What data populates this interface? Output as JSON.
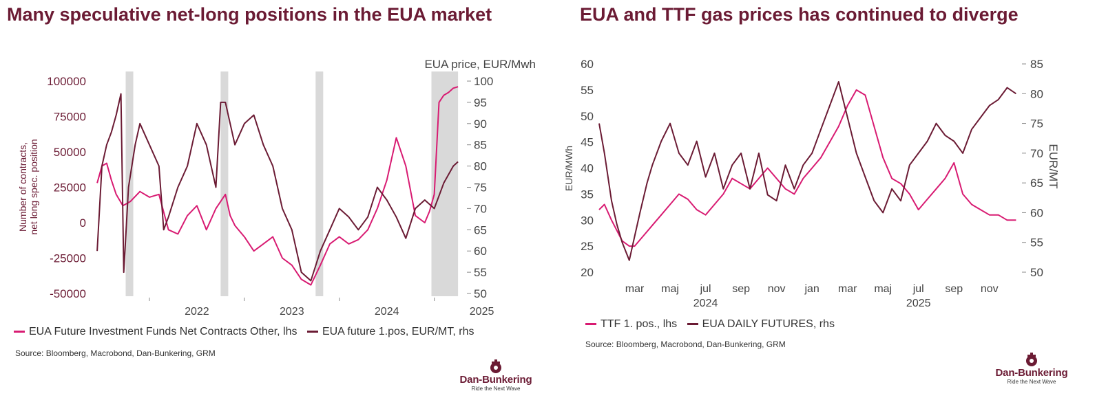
{
  "chart_data": [
    {
      "type": "line",
      "title": "Many speculative net-long positions in the EUA market",
      "ylabel": "Number of contracts, net long spec. position",
      "y2label": "EUA price, EUR/Mwh",
      "ylim": [
        -50000,
        100000
      ],
      "y2lim": [
        50,
        100
      ],
      "yticks": [
        "100000",
        "75000",
        "50000",
        "25000",
        "0",
        "-25000",
        "-50000"
      ],
      "y2ticks": [
        "100",
        "95",
        "90",
        "85",
        "80",
        "75",
        "70",
        "65",
        "60",
        "55",
        "50"
      ],
      "xticks": [
        "2022",
        "2023",
        "2024",
        "2025"
      ],
      "shaded_periods": [
        [
          2021.75,
          2021.83
        ],
        [
          2022.75,
          2022.83
        ],
        [
          2023.75,
          2023.83
        ],
        [
          2024.97,
          2025.25
        ]
      ],
      "series": [
        {
          "name": "EUA Future Investment Funds Net Contracts Other, lhs",
          "color": "#d81b72",
          "axis": "lhs",
          "x": [
            2021.45,
            2021.5,
            2021.55,
            2021.6,
            2021.65,
            2021.72,
            2021.8,
            2021.9,
            2022.0,
            2022.1,
            2022.2,
            2022.3,
            2022.4,
            2022.5,
            2022.6,
            2022.7,
            2022.8,
            2022.85,
            2022.9,
            2023.0,
            2023.1,
            2023.2,
            2023.3,
            2023.4,
            2023.5,
            2023.6,
            2023.7,
            2023.8,
            2023.9,
            2024.0,
            2024.1,
            2024.2,
            2024.3,
            2024.4,
            2024.5,
            2024.6,
            2024.7,
            2024.8,
            2024.9,
            2024.95,
            2025.0,
            2025.05,
            2025.1,
            2025.15,
            2025.2,
            2025.25
          ],
          "values": [
            28000,
            40000,
            42000,
            30000,
            20000,
            12000,
            15000,
            22000,
            18000,
            20000,
            -5000,
            -8000,
            5000,
            12000,
            -5000,
            10000,
            20000,
            5000,
            -2000,
            -10000,
            -20000,
            -15000,
            -10000,
            -25000,
            -30000,
            -40000,
            -44000,
            -30000,
            -15000,
            -10000,
            -15000,
            -12000,
            -5000,
            10000,
            30000,
            60000,
            40000,
            5000,
            0,
            8000,
            20000,
            85000,
            90000,
            92000,
            95000,
            96000
          ]
        },
        {
          "name": "EUA future 1.pos, EUR/MT, rhs",
          "color": "#6b1b34",
          "axis": "rhs",
          "x": [
            2021.45,
            2021.5,
            2021.55,
            2021.6,
            2021.65,
            2021.7,
            2021.73,
            2021.78,
            2021.85,
            2021.9,
            2022.0,
            2022.1,
            2022.15,
            2022.2,
            2022.3,
            2022.4,
            2022.5,
            2022.6,
            2022.7,
            2022.75,
            2022.8,
            2022.9,
            2023.0,
            2023.1,
            2023.2,
            2023.3,
            2023.4,
            2023.5,
            2023.6,
            2023.7,
            2023.8,
            2023.9,
            2024.0,
            2024.1,
            2024.2,
            2024.3,
            2024.4,
            2024.5,
            2024.6,
            2024.7,
            2024.8,
            2024.9,
            2025.0,
            2025.1,
            2025.2,
            2025.25
          ],
          "values": [
            60,
            80,
            85,
            88,
            92,
            97,
            55,
            75,
            85,
            90,
            85,
            80,
            65,
            68,
            75,
            80,
            90,
            85,
            75,
            95,
            95,
            85,
            90,
            92,
            85,
            80,
            70,
            65,
            55,
            53,
            60,
            65,
            70,
            68,
            65,
            68,
            75,
            72,
            68,
            63,
            70,
            72,
            70,
            76,
            80,
            81
          ]
        }
      ],
      "legend": [
        "EUA Future Investment Funds Net Contracts Other, lhs",
        "EUA future 1.pos, EUR/MT, rhs"
      ],
      "source": "Source: Bloomberg, Macrobond, Dan-Bunkering, GRM"
    },
    {
      "type": "line",
      "title": "EUA and TTF gas prices has continued to diverge",
      "ylabel": "EUR/MWh",
      "y2label": "EUR/MT",
      "ylim": [
        20,
        60
      ],
      "y2lim": [
        50,
        85
      ],
      "yticks": [
        "60",
        "55",
        "50",
        "45",
        "40",
        "35",
        "30",
        "25",
        "20"
      ],
      "y2ticks": [
        "85",
        "80",
        "75",
        "70",
        "65",
        "60",
        "55",
        "50"
      ],
      "xticks": [
        "mar",
        "maj",
        "jul",
        "sep",
        "nov",
        "jan",
        "mar",
        "maj",
        "jul",
        "sep",
        "nov"
      ],
      "xyears": [
        "2024",
        "2025"
      ],
      "series": [
        {
          "name": "TTF 1. pos., lhs",
          "color": "#d81b72",
          "axis": "lhs",
          "x": [
            0,
            0.3,
            0.7,
            1,
            1.3,
            1.7,
            2,
            2.5,
            3,
            3.5,
            4,
            4.5,
            5,
            5.5,
            6,
            6.5,
            7,
            7.5,
            8,
            8.5,
            9,
            9.5,
            10,
            10.5,
            11,
            11.5,
            12,
            12.5,
            13,
            13.5,
            14,
            14.5,
            15,
            15.5,
            16,
            16.5,
            17,
            17.5,
            18,
            18.5,
            19,
            19.5,
            20,
            20.5,
            21,
            21.5,
            22,
            22.5,
            23,
            23.5
          ],
          "values": [
            32,
            33,
            30,
            28,
            26,
            25,
            25,
            27,
            29,
            31,
            33,
            35,
            34,
            32,
            31,
            33,
            35,
            38,
            37,
            36,
            38,
            40,
            38,
            36,
            35,
            38,
            40,
            42,
            45,
            48,
            52,
            55,
            54,
            48,
            42,
            38,
            37,
            35,
            32,
            34,
            36,
            38,
            41,
            35,
            33,
            32,
            31,
            31,
            30,
            30
          ]
        },
        {
          "name": "EUA DAILY FUTURES, rhs",
          "color": "#6b1b34",
          "axis": "rhs",
          "x": [
            0,
            0.3,
            0.7,
            1,
            1.3,
            1.7,
            2,
            2.3,
            2.7,
            3,
            3.5,
            4,
            4.5,
            5,
            5.5,
            6,
            6.5,
            7,
            7.5,
            8,
            8.5,
            9,
            9.5,
            10,
            10.5,
            11,
            11.5,
            12,
            12.5,
            13,
            13.5,
            14,
            14.5,
            15,
            15.5,
            16,
            16.5,
            17,
            17.5,
            18,
            18.5,
            19,
            19.5,
            20,
            20.5,
            21,
            21.5,
            22,
            22.5,
            23,
            23.5
          ],
          "values": [
            75,
            70,
            62,
            58,
            55,
            52,
            56,
            60,
            65,
            68,
            72,
            75,
            70,
            68,
            72,
            66,
            70,
            64,
            68,
            70,
            64,
            70,
            63,
            62,
            68,
            64,
            68,
            70,
            74,
            78,
            82,
            76,
            70,
            66,
            62,
            60,
            64,
            62,
            68,
            70,
            72,
            75,
            73,
            72,
            70,
            74,
            76,
            78,
            79,
            81,
            80
          ]
        }
      ],
      "legend": [
        "TTF 1. pos., lhs",
        "EUA DAILY FUTURES, rhs"
      ],
      "source": "Source: Bloomberg, Macrobond, Dan-Bunkering, GRM"
    }
  ],
  "logo": {
    "name": "Dan-Bunkering",
    "tagline": "Ride the Next Wave"
  },
  "colors": {
    "accent": "#d81b72",
    "brand": "#6b1b34",
    "shade": "#d9d9d9"
  }
}
